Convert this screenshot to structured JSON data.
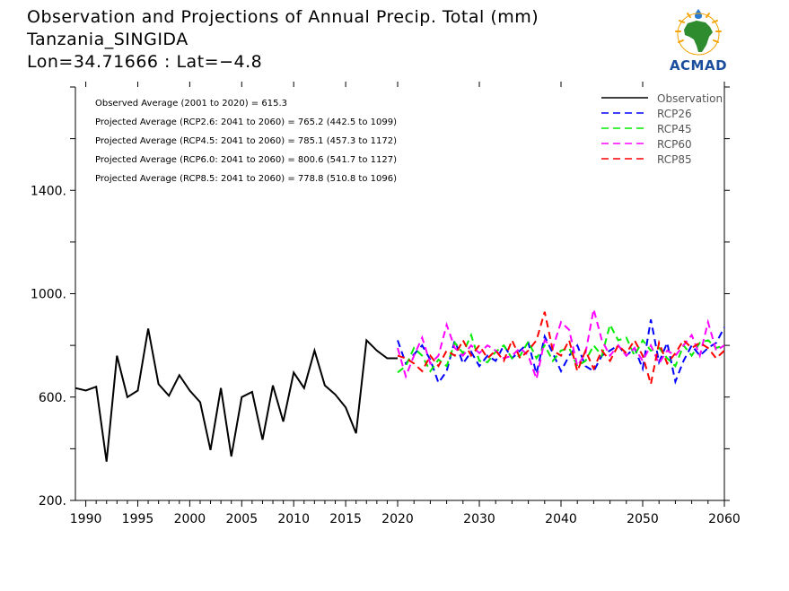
{
  "title": {
    "line1": "Observation and Projections of Annual Precip. Total (mm)",
    "line2": "Tanzania_SINGIDA",
    "line3": "Lon=34.71666 : Lat=−4.8"
  },
  "logo": {
    "text": "ACMAD"
  },
  "stats": [
    "Observed Average (2001 to 2020) = 615.3",
    "Projected Average (RCP2.6: 2041 to 2060) = 765.2 (442.5 to 1099)",
    "Projected Average (RCP4.5: 2041 to 2060) = 785.1 (457.3 to 1172)",
    "Projected Average (RCP6.0: 2041 to 2060) = 800.6 (541.7 to 1127)",
    "Projected Average (RCP8.5: 2041 to 2060) = 778.8 (510.8 to 1096)"
  ],
  "colors": {
    "observation": "#000000",
    "rcp26": "#0000ff",
    "rcp45": "#00ee00",
    "rcp60": "#ff00ff",
    "rcp85": "#ff0000"
  },
  "chart_data": {
    "type": "line",
    "x_ticks": [
      1990,
      1995,
      2000,
      2005,
      2010,
      2015,
      2020,
      2030,
      2040,
      2050,
      2060
    ],
    "y_ticks": [
      200,
      600,
      1000,
      1400
    ],
    "y_tick_labels": [
      "200.",
      "600.",
      "1000.",
      "1400."
    ],
    "ylim": [
      200,
      1800
    ],
    "grid": false,
    "legend_position": "top-right",
    "series": [
      {
        "name": "Observation",
        "color_key": "observation",
        "style": "solid",
        "x": [
          1989,
          1990,
          1991,
          1992,
          1993,
          1994,
          1995,
          1996,
          1997,
          1998,
          1999,
          2000,
          2001,
          2002,
          2003,
          2004,
          2005,
          2006,
          2007,
          2008,
          2009,
          2010,
          2011,
          2012,
          2013,
          2014,
          2015,
          2016,
          2017,
          2018,
          2019,
          2020
        ],
        "values": [
          635,
          625,
          640,
          350,
          760,
          600,
          625,
          865,
          650,
          605,
          685,
          625,
          580,
          395,
          635,
          370,
          600,
          620,
          435,
          645,
          505,
          695,
          635,
          780,
          645,
          610,
          560,
          460,
          820,
          780,
          750,
          750
        ]
      },
      {
        "name": "RCP26",
        "color_key": "rcp26",
        "style": "dashed",
        "x": [
          2020,
          2021,
          2022,
          2023,
          2024,
          2025,
          2026,
          2027,
          2028,
          2029,
          2030,
          2031,
          2032,
          2033,
          2034,
          2035,
          2036,
          2037,
          2038,
          2039,
          2040,
          2041,
          2042,
          2043,
          2044,
          2045,
          2046,
          2047,
          2048,
          2049,
          2050,
          2051,
          2052,
          2053,
          2054,
          2055,
          2056,
          2057,
          2058,
          2059,
          2060
        ],
        "values": [
          820,
          730,
          765,
          800,
          745,
          655,
          700,
          820,
          730,
          775,
          720,
          760,
          740,
          800,
          750,
          780,
          810,
          690,
          835,
          770,
          700,
          760,
          800,
          720,
          700,
          760,
          780,
          800,
          760,
          790,
          710,
          900,
          735,
          810,
          660,
          740,
          800,
          760,
          790,
          810,
          870
        ]
      },
      {
        "name": "RCP45",
        "color_key": "rcp45",
        "style": "dashed",
        "x": [
          2020,
          2021,
          2022,
          2023,
          2024,
          2025,
          2026,
          2027,
          2028,
          2029,
          2030,
          2031,
          2032,
          2033,
          2034,
          2035,
          2036,
          2037,
          2038,
          2039,
          2040,
          2041,
          2042,
          2043,
          2044,
          2045,
          2046,
          2047,
          2048,
          2049,
          2050,
          2051,
          2052,
          2053,
          2054,
          2055,
          2056,
          2057,
          2058,
          2059,
          2060
        ],
        "values": [
          695,
          720,
          790,
          760,
          700,
          745,
          720,
          810,
          770,
          840,
          740,
          735,
          775,
          800,
          750,
          760,
          815,
          750,
          800,
          740,
          780,
          790,
          720,
          740,
          800,
          760,
          880,
          820,
          830,
          760,
          820,
          780,
          790,
          750,
          720,
          800,
          760,
          810,
          820,
          790,
          800
        ]
      },
      {
        "name": "RCP60",
        "color_key": "rcp60",
        "style": "dashed",
        "x": [
          2020,
          2021,
          2022,
          2023,
          2024,
          2025,
          2026,
          2027,
          2028,
          2029,
          2030,
          2031,
          2032,
          2033,
          2034,
          2035,
          2036,
          2037,
          2038,
          2039,
          2040,
          2041,
          2042,
          2043,
          2044,
          2045,
          2046,
          2047,
          2048,
          2049,
          2050,
          2051,
          2052,
          2053,
          2054,
          2055,
          2056,
          2057,
          2058,
          2059,
          2060
        ],
        "values": [
          790,
          680,
          760,
          830,
          730,
          760,
          880,
          790,
          760,
          800,
          770,
          800,
          780,
          750,
          760,
          790,
          760,
          670,
          820,
          790,
          890,
          860,
          720,
          770,
          940,
          820,
          760,
          800,
          760,
          790,
          740,
          800,
          730,
          780,
          760,
          800,
          840,
          760,
          890,
          780,
          800
        ]
      },
      {
        "name": "RCP85",
        "color_key": "rcp85",
        "style": "dashed",
        "x": [
          2020,
          2021,
          2022,
          2023,
          2024,
          2025,
          2026,
          2027,
          2028,
          2029,
          2030,
          2031,
          2032,
          2033,
          2034,
          2035,
          2036,
          2037,
          2038,
          2039,
          2040,
          2041,
          2042,
          2043,
          2044,
          2045,
          2046,
          2047,
          2048,
          2049,
          2050,
          2051,
          2052,
          2053,
          2054,
          2055,
          2056,
          2057,
          2058,
          2059,
          2060
        ],
        "values": [
          760,
          750,
          730,
          700,
          760,
          720,
          780,
          760,
          820,
          760,
          800,
          750,
          780,
          740,
          820,
          750,
          780,
          820,
          930,
          780,
          760,
          820,
          700,
          780,
          710,
          780,
          740,
          800,
          770,
          820,
          760,
          650,
          810,
          730,
          770,
          820,
          790,
          810,
          790,
          750,
          780
        ]
      }
    ]
  }
}
